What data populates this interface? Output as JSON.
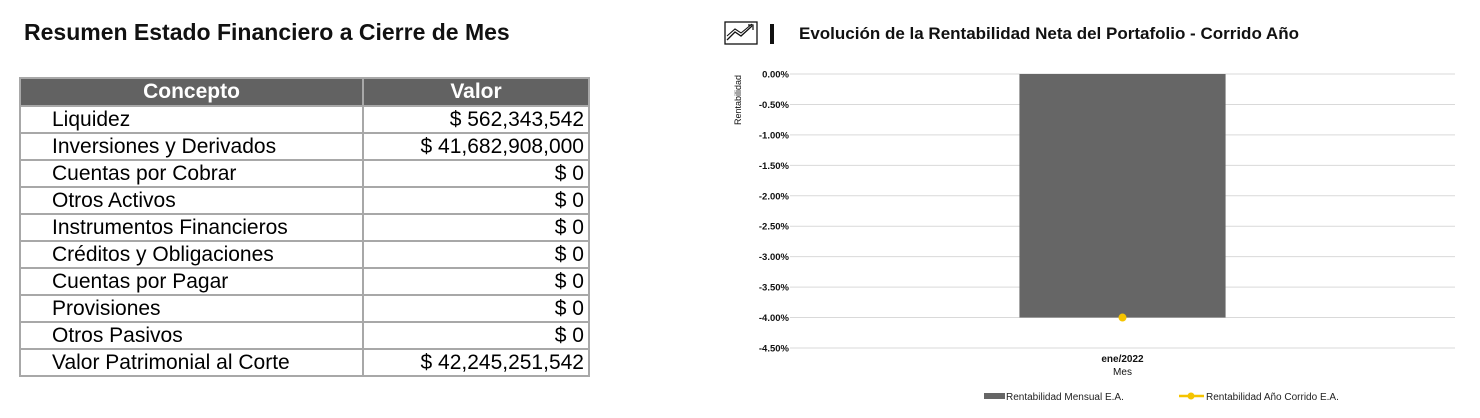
{
  "summary": {
    "title": "Resumen Estado Financiero a Cierre de Mes",
    "headers": [
      "Concepto",
      "Valor"
    ],
    "rows": [
      {
        "concepto": "Liquidez",
        "valor": "$ 562,343,542"
      },
      {
        "concepto": "Inversiones y Derivados",
        "valor": "$ 41,682,908,000"
      },
      {
        "concepto": "Cuentas por Cobrar",
        "valor": "$ 0"
      },
      {
        "concepto": "Otros Activos",
        "valor": "$ 0"
      },
      {
        "concepto": "Instrumentos Financieros",
        "valor": "$ 0"
      },
      {
        "concepto": "Créditos y Obligaciones",
        "valor": "$ 0"
      },
      {
        "concepto": "Cuentas por Pagar",
        "valor": "$ 0"
      },
      {
        "concepto": "Provisiones",
        "valor": "$ 0"
      },
      {
        "concepto": "Otros Pasivos",
        "valor": "$ 0"
      },
      {
        "concepto": "Valor Patrimonial al Corte",
        "valor": "$ 42,245,251,542"
      }
    ]
  },
  "chart_header": {
    "icon": "trend-chart-icon"
  },
  "chart_data": {
    "type": "bar",
    "title": "Evolución de la Rentabilidad Neta del Portafolio - Corrido Año",
    "categories": [
      "ene/2022"
    ],
    "xlabel": "Mes",
    "ylabel": "Rentabilidad",
    "ylim": [
      -4.5,
      0.0
    ],
    "yticks": [
      "0.00%",
      "-0.50%",
      "-1.00%",
      "-1.50%",
      "-2.00%",
      "-2.50%",
      "-3.00%",
      "-3.50%",
      "-4.00%",
      "-4.50%"
    ],
    "grid": true,
    "legend_position": "bottom",
    "series": [
      {
        "name": "Rentabilidad Mensual E.A.",
        "kind": "bar",
        "color": "#666666",
        "values": [
          -4.0
        ]
      },
      {
        "name": "Rentabilidad Año Corrido E.A.",
        "kind": "line",
        "color": "#f5c400",
        "values": [
          -4.0
        ]
      }
    ]
  }
}
